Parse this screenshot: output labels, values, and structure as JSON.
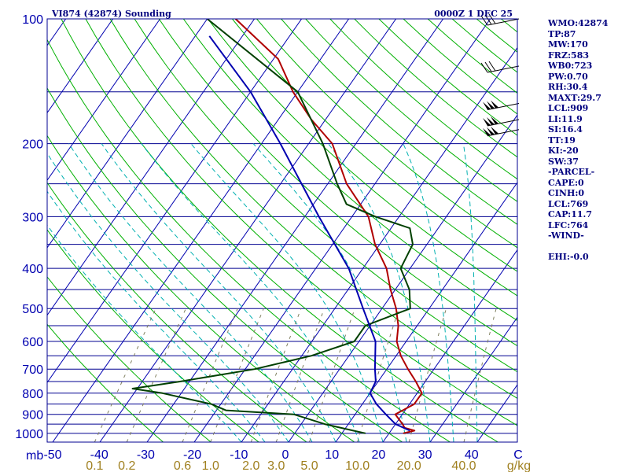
{
  "chart_data": {
    "type": "skew-t log-p sounding",
    "title": "VI874 (42874) Sounding",
    "valid_time": "0000Z  1 DEC 25",
    "pressure_axis": {
      "unit_label": "mb",
      "tick_labels": [
        "100",
        "200",
        "300",
        "400",
        "500",
        "600",
        "700",
        "800",
        "900",
        "1000"
      ],
      "range_mb": [
        1050,
        100
      ],
      "scale": "log"
    },
    "temperature_axis": {
      "tick_labels": [
        "-50",
        "-40",
        "-30",
        "-20",
        "-10",
        "0",
        "10",
        "20",
        "30",
        "40",
        "C"
      ],
      "skewed": true
    },
    "mixing_ratio_labels": [
      "0.1",
      "0.2",
      "0.6",
      "1.0",
      "2.0",
      "3.0",
      "5.0",
      "10.0",
      "20.0",
      "40.0",
      "g/kg"
    ],
    "series": [
      {
        "role": "temperature",
        "color": "#b00000",
        "points": [
          [
            1000,
            23
          ],
          [
            985,
            25
          ],
          [
            970,
            22.5
          ],
          [
            950,
            21.5
          ],
          [
            900,
            18.5
          ],
          [
            850,
            21
          ],
          [
            800,
            21
          ],
          [
            750,
            18
          ],
          [
            700,
            14.5
          ],
          [
            650,
            11
          ],
          [
            600,
            8
          ],
          [
            550,
            6
          ],
          [
            500,
            3
          ],
          [
            450,
            -1
          ],
          [
            400,
            -5
          ],
          [
            350,
            -11
          ],
          [
            300,
            -16.5
          ],
          [
            250,
            -26
          ],
          [
            200,
            -35
          ],
          [
            175,
            -43
          ],
          [
            150,
            -51
          ],
          [
            125,
            -59
          ],
          [
            100,
            -74
          ]
        ]
      },
      {
        "role": "dewpoint",
        "color": "#004000",
        "points": [
          [
            1000,
            15
          ],
          [
            985,
            12
          ],
          [
            950,
            5
          ],
          [
            900,
            -3
          ],
          [
            880,
            -18
          ],
          [
            850,
            -22
          ],
          [
            800,
            -34
          ],
          [
            780,
            -41
          ],
          [
            750,
            -32
          ],
          [
            700,
            -18
          ],
          [
            650,
            -8
          ],
          [
            600,
            -1
          ],
          [
            550,
            -1
          ],
          [
            500,
            6
          ],
          [
            450,
            3
          ],
          [
            400,
            -2
          ],
          [
            350,
            -3
          ],
          [
            320,
            -6
          ],
          [
            300,
            -15
          ],
          [
            280,
            -23
          ],
          [
            250,
            -28
          ],
          [
            200,
            -37
          ],
          [
            150,
            -50
          ],
          [
            100,
            -80
          ]
        ]
      },
      {
        "role": "parcel",
        "color": "#0000b0",
        "points": [
          [
            985,
            24
          ],
          [
            950,
            20
          ],
          [
            900,
            16.5
          ],
          [
            850,
            13
          ],
          [
            800,
            10
          ],
          [
            750,
            9.5
          ],
          [
            700,
            7.5
          ],
          [
            600,
            3.5
          ],
          [
            500,
            -4
          ],
          [
            400,
            -13
          ],
          [
            300,
            -27
          ],
          [
            200,
            -46
          ],
          [
            150,
            -60
          ],
          [
            110,
            -77
          ]
        ]
      }
    ],
    "wind_barbs_present": true
  },
  "indices": [
    "WMO:42874",
    "TP:87",
    "MW:170",
    "FRZ:583",
    "WB0:723",
    "PW:0.70",
    "RH:30.4",
    "MAXT:29.7",
    "LCL:909",
    "LI:11.9",
    "SI:16.4",
    "TT:19",
    "KI:-20",
    "SW:37",
    "-PARCEL-",
    "CAPE:0",
    "CINH:0",
    "LCL:769",
    "CAP:11.7",
    "LFC:764",
    "-WIND-",
    "",
    "EHI:-0.0"
  ],
  "colors": {
    "isobar": "#000090",
    "isotherm": "#0000b0",
    "dry_adiabat": "#00b000",
    "moist_adiabat": "#00b0b0",
    "mixing_ratio": "#808060",
    "text": "#00007f"
  }
}
